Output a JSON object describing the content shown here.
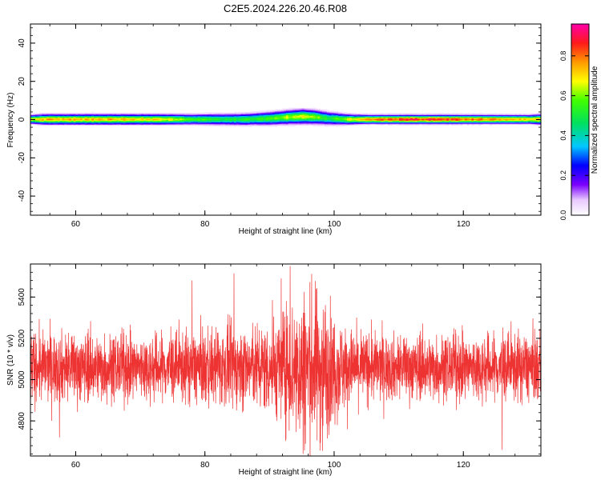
{
  "title": "C2E5.2024.226.20.46.R08",
  "chart_data": [
    {
      "type": "heatmap",
      "xlabel": "Height of straight line (km)",
      "ylabel": "Frequency (Hz)",
      "xlim": [
        53,
        132
      ],
      "ylim": [
        -50,
        50
      ],
      "xticks": [
        60,
        80,
        100,
        120
      ],
      "yticks": [
        -40,
        -20,
        0,
        20,
        40
      ],
      "colorbar": {
        "label": "Normalized spectral amplitude",
        "range": [
          0.0,
          0.96
        ],
        "ticks": [
          "0.0",
          "0.2",
          "0.4",
          "0.6",
          "0.8"
        ]
      },
      "band_profile": {
        "heights_km": [
          53,
          55,
          60,
          65,
          70,
          75,
          78,
          82,
          86,
          90,
          93,
          95,
          97,
          99,
          102,
          105,
          110,
          115,
          120,
          125,
          130,
          132
        ],
        "center_freq_hz": [
          0,
          0,
          0,
          0,
          0,
          0,
          0,
          0,
          0,
          0.5,
          1.2,
          1.5,
          1.2,
          0.5,
          0,
          0,
          0,
          0,
          0,
          0,
          0,
          0
        ],
        "half_width_hz": [
          3,
          3.5,
          3.5,
          3.5,
          3.5,
          3.5,
          3.5,
          3.8,
          4,
          4.5,
          4.8,
          5,
          4.8,
          4.5,
          3.5,
          3,
          3,
          3,
          3,
          3,
          3,
          3.5
        ],
        "peak_amplitude": [
          0.7,
          0.8,
          0.82,
          0.8,
          0.78,
          0.72,
          0.6,
          0.55,
          0.55,
          0.6,
          0.7,
          0.72,
          0.65,
          0.55,
          0.7,
          0.85,
          0.95,
          0.95,
          0.9,
          0.82,
          0.78,
          0.75
        ]
      }
    },
    {
      "type": "line",
      "xlabel": "Height of straight line (km)",
      "ylabel": "SNR (10 * v/v)",
      "xlim": [
        53,
        132
      ],
      "ylim": [
        4630,
        5560
      ],
      "xticks": [
        60,
        80,
        100,
        120
      ],
      "yticks": [
        4800,
        5000,
        5200,
        5400
      ],
      "series_color": "#ee3333",
      "baseline_snr": 5060,
      "noise_profile": {
        "heights_km": [
          53,
          60,
          70,
          80,
          88,
          92,
          94,
          96,
          98,
          100,
          102,
          105,
          110,
          120,
          132
        ],
        "amplitude": [
          150,
          150,
          140,
          160,
          180,
          230,
          320,
          340,
          330,
          230,
          170,
          150,
          140,
          140,
          150
        ]
      },
      "spikes": [
        {
          "x": 93.2,
          "y": 5550
        },
        {
          "x": 91.8,
          "y": 5490
        },
        {
          "x": 84.5,
          "y": 5515
        },
        {
          "x": 78.0,
          "y": 5480
        },
        {
          "x": 95.2,
          "y": 4640
        },
        {
          "x": 98.2,
          "y": 4655
        },
        {
          "x": 126.0,
          "y": 4660
        },
        {
          "x": 57.5,
          "y": 4720
        }
      ]
    }
  ],
  "colors": {
    "plot_background": "#ffffff",
    "snr_line": "#ee3333"
  }
}
